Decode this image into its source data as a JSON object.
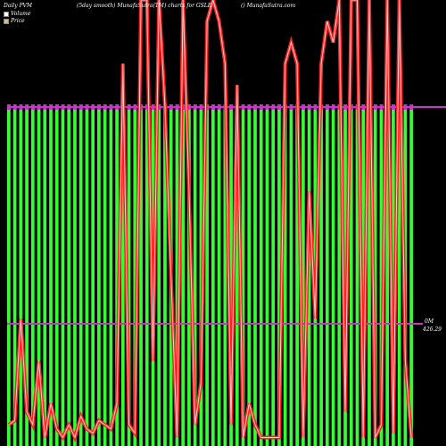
{
  "header": {
    "title_left": "Daily PVM",
    "title_center": "(5day smooth) MunafaSutra(TM) charts for GSLE",
    "watermark": "() MunafaSutra.com"
  },
  "legend": {
    "items": [
      {
        "label": "Volume",
        "color": "#ffffff"
      },
      {
        "label": "Price",
        "color": "#d9b98a"
      }
    ]
  },
  "axis": {
    "volume_label": "0M",
    "price_label": "426.29"
  },
  "colors": {
    "background": "#000000",
    "volume_bar": "#33ff33",
    "price_line": "#ff2222",
    "ma_line": "#cc33cc"
  },
  "chart_data": [
    {
      "type": "bar",
      "title": "Daily PVM",
      "subtitle": "(5day smooth) MunafaSutra(TM) charts for GSLE",
      "series": [
        {
          "name": "Volume",
          "values": [
            1,
            1,
            1,
            1,
            1,
            1,
            1,
            1,
            1,
            1,
            1,
            1,
            1,
            1,
            1,
            1,
            1,
            1,
            1,
            1,
            1,
            1,
            1,
            1,
            1,
            1,
            1,
            1,
            1,
            1,
            1,
            1,
            1,
            1,
            1,
            1,
            1,
            1,
            1,
            1,
            1,
            1,
            1,
            1,
            1,
            1,
            1,
            1,
            1,
            1,
            1,
            1,
            1,
            1,
            1,
            1,
            1,
            1,
            1,
            1,
            1,
            1,
            1,
            1,
            1,
            1,
            1,
            1
          ]
        }
      ],
      "grid": false,
      "legend": "top-left"
    },
    {
      "type": "line",
      "series": [
        {
          "name": "Price",
          "values": [
            0.05,
            0.06,
            0.3,
            0.08,
            0.05,
            0.2,
            0.02,
            0.1,
            0.04,
            0.02,
            0.05,
            0.02,
            0.07,
            0.04,
            0.03,
            0.06,
            0.05,
            0.04,
            0.1,
            0.9,
            0.05,
            0.03,
            1.05,
            1.05,
            0.2,
            1.05,
            0.8,
            0.4,
            0.02,
            1.05,
            0.6,
            0.05,
            0.15,
            1.0,
            1.05,
            1.0,
            0.9,
            0.05,
            0.85,
            0.02,
            0.1,
            0.05,
            0.02,
            0.02,
            0.02,
            0.02,
            0.9,
            0.95,
            0.9,
            0.02,
            0.6,
            0.3,
            0.9,
            1.0,
            0.95,
            1.05,
            0.08,
            1.05,
            1.05,
            0.02,
            1.05,
            0.02,
            0.05,
            1.05,
            0.03,
            1.05,
            0.2,
            0.02
          ]
        }
      ]
    }
  ]
}
